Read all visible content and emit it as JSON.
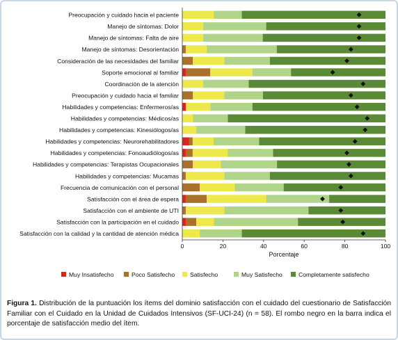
{
  "chart_data": {
    "type": "bar",
    "orientation": "horizontal",
    "stacked": true,
    "xlabel": "Porcentaje",
    "xlim": [
      0,
      100
    ],
    "xticks": [
      0,
      20,
      40,
      60,
      80,
      100
    ],
    "legend_position": "bottom",
    "categories": [
      "Preocupación y cuidado hacia el paciente",
      "Manejo de síntomas: Dolor",
      "Manejo de síntomas: Falta de aire",
      "Manejo de síntomas: Desorientación",
      "Consideración de las necesidades del familiar",
      "Soporte emocional al familiar",
      "Coordinación de la atención",
      "Preocupación y cuidado hacia el familiar",
      "Habilidades y competencias: Enfermeros/as",
      "Habilidades y competencias: Médicos/as",
      "Habilidades y competencias: Kinesiólogos/as",
      "Habilidades y competencias: Neurorehabilitadores",
      "Habilidades y competencias: Fonoaudiólogos/as",
      "Habilidades y competencias: Terapistas Ocupacionales",
      "Habilidades y competencias: Mucamas",
      "Frecuencia de comunicación con el personal",
      "Satisfacción con el área de espera",
      "Satisfacción con el ambiente de UTI",
      "Satisfacción con la participación en el cuidado",
      "Satisfacción con la calidad y la cantidad de atención médica"
    ],
    "series": [
      {
        "name": "Muy Insatisfecho",
        "color": "#d7261e",
        "values": [
          0,
          0,
          0,
          0,
          0,
          1.7,
          0,
          0,
          1.7,
          0,
          0,
          3.4,
          1.7,
          0,
          0,
          0,
          1.7,
          0,
          1.7,
          0
        ]
      },
      {
        "name": "Poco Satisfecho",
        "color": "#a8712c",
        "values": [
          0,
          0,
          0,
          1.7,
          5.2,
          12.1,
          0,
          5.2,
          0,
          0,
          0,
          1.7,
          3.4,
          5.2,
          1.7,
          8.6,
          10.3,
          1.7,
          5.2,
          0
        ]
      },
      {
        "name": "Satisfecho",
        "color": "#ede94a",
        "values": [
          15.5,
          10.3,
          10.3,
          10.3,
          15.5,
          20.7,
          10.3,
          15.5,
          12.1,
          5.2,
          6.9,
          10.3,
          17.2,
          13.8,
          19.0,
          17.2,
          29.3,
          19.0,
          8.6,
          8.6
        ]
      },
      {
        "name": "Muy Satisfecho",
        "color": "#b0d58a",
        "values": [
          13.8,
          31.0,
          29.3,
          34.5,
          22.4,
          19.0,
          22.4,
          19.0,
          20.7,
          17.2,
          24.1,
          22.4,
          22.4,
          27.6,
          22.4,
          24.1,
          31.0,
          41.4,
          41.4,
          20.7
        ]
      },
      {
        "name": "Completamente satisfecho",
        "color": "#5b8a37",
        "values": [
          70.7,
          58.7,
          60.4,
          53.5,
          56.9,
          46.5,
          67.3,
          60.3,
          65.5,
          77.6,
          69.0,
          62.2,
          55.3,
          53.4,
          56.9,
          50.1,
          27.7,
          37.9,
          43.1,
          70.7
        ]
      }
    ],
    "mean_marker": {
      "shape": "diamond",
      "color": "#111111",
      "values": [
        87,
        87,
        87,
        83,
        81,
        74,
        89,
        83,
        86,
        91,
        90,
        85,
        81,
        82,
        83,
        78,
        69,
        78,
        79,
        89
      ]
    }
  },
  "caption": {
    "figure_label": "Figura 1.",
    "text": "Distribución de la puntuación los ítems del dominio satisfacción con el cuidado del cuestionario de Satisfacción Familiar con el Cuidado en la Unidad de Cuidados Intensivos (SF-UCI-24) (n = 58). El rombo negro en la barra indica el porcentaje de satisfacción medio del ítem."
  }
}
